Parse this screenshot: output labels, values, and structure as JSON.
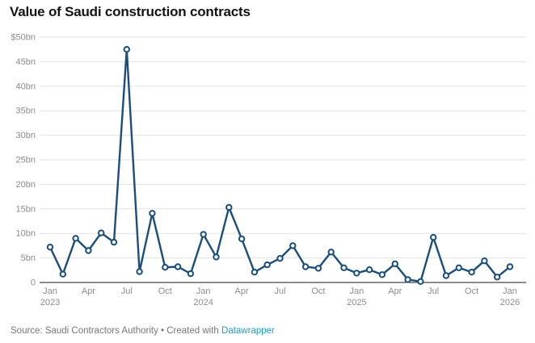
{
  "title": "Value of Saudi construction contracts",
  "footer": {
    "source_prefix": "Source: ",
    "source_name": "Saudi Contractors Authority",
    "separator": " • ",
    "created_with_prefix": "Created with ",
    "link_label": "Datawrapper"
  },
  "colors": {
    "background": "#ffffff",
    "title_text": "#141414",
    "line": "#1a4e7d",
    "marker_fill": "#ffffff",
    "grid": "#e2e2e2",
    "baseline": "#1a1a1a",
    "tick_label": "#8c8c8c",
    "footer_text": "#767676",
    "link": "#18a1cd"
  },
  "chart_data": {
    "type": "line",
    "title": "Value of Saudi construction contracts",
    "xlabel": "",
    "ylabel": "",
    "unit": "$bn",
    "ylim": [
      0,
      50
    ],
    "grid": "horizontal",
    "legend_position": "none",
    "marker_style": "open-circle",
    "x": [
      "Jan 2023",
      "Feb 2023",
      "Mar 2023",
      "Apr 2023",
      "May 2023",
      "Jun 2023",
      "Jul 2023",
      "Aug 2023",
      "Sep 2023",
      "Oct 2023",
      "Nov 2023",
      "Dec 2023",
      "Jan 2024",
      "Feb 2024",
      "Mar 2024",
      "Apr 2024",
      "May 2024",
      "Jun 2024",
      "Jul 2024",
      "Aug 2024",
      "Sep 2024",
      "Oct 2024",
      "Nov 2024",
      "Dec 2024",
      "Jan 2025",
      "Feb 2025",
      "Mar 2025",
      "Apr 2025",
      "May 2025",
      "Jun 2025",
      "Jul 2025",
      "Aug 2025",
      "Sep 2025",
      "Oct 2025",
      "Nov 2025",
      "Dec 2025",
      "Jan 2026"
    ],
    "values": [
      7.2,
      1.7,
      9.0,
      6.5,
      10.1,
      8.2,
      47.5,
      2.2,
      14.1,
      3.1,
      3.2,
      1.8,
      9.8,
      5.2,
      15.3,
      8.9,
      2.1,
      3.6,
      4.9,
      7.5,
      3.2,
      2.9,
      6.2,
      3.0,
      1.9,
      2.6,
      1.6,
      3.8,
      0.6,
      0.2,
      9.2,
      1.4,
      3.0,
      2.1,
      4.4,
      1.1,
      3.2
    ],
    "y_ticks": [
      {
        "value": 50,
        "label": "$50bn"
      },
      {
        "value": 45,
        "label": "45bn"
      },
      {
        "value": 40,
        "label": "40bn"
      },
      {
        "value": 35,
        "label": "35bn"
      },
      {
        "value": 30,
        "label": "30bn"
      },
      {
        "value": 25,
        "label": "25bn"
      },
      {
        "value": 20,
        "label": "20bn"
      },
      {
        "value": 15,
        "label": "15bn"
      },
      {
        "value": 10,
        "label": "10bn"
      },
      {
        "value": 5,
        "label": "5bn"
      },
      {
        "value": 0,
        "label": "0"
      }
    ],
    "x_ticks": [
      {
        "index": 0,
        "label": "Jan",
        "year": "2023"
      },
      {
        "index": 3,
        "label": "Apr",
        "year": ""
      },
      {
        "index": 6,
        "label": "Jul",
        "year": ""
      },
      {
        "index": 9,
        "label": "Oct",
        "year": ""
      },
      {
        "index": 12,
        "label": "Jan",
        "year": "2024"
      },
      {
        "index": 15,
        "label": "Apr",
        "year": ""
      },
      {
        "index": 18,
        "label": "Jul",
        "year": ""
      },
      {
        "index": 21,
        "label": "Oct",
        "year": ""
      },
      {
        "index": 24,
        "label": "Jan",
        "year": "2025"
      },
      {
        "index": 27,
        "label": "Apr",
        "year": ""
      },
      {
        "index": 30,
        "label": "Jul",
        "year": ""
      },
      {
        "index": 33,
        "label": "Oct",
        "year": ""
      },
      {
        "index": 36,
        "label": "Jan",
        "year": "2026"
      }
    ]
  }
}
